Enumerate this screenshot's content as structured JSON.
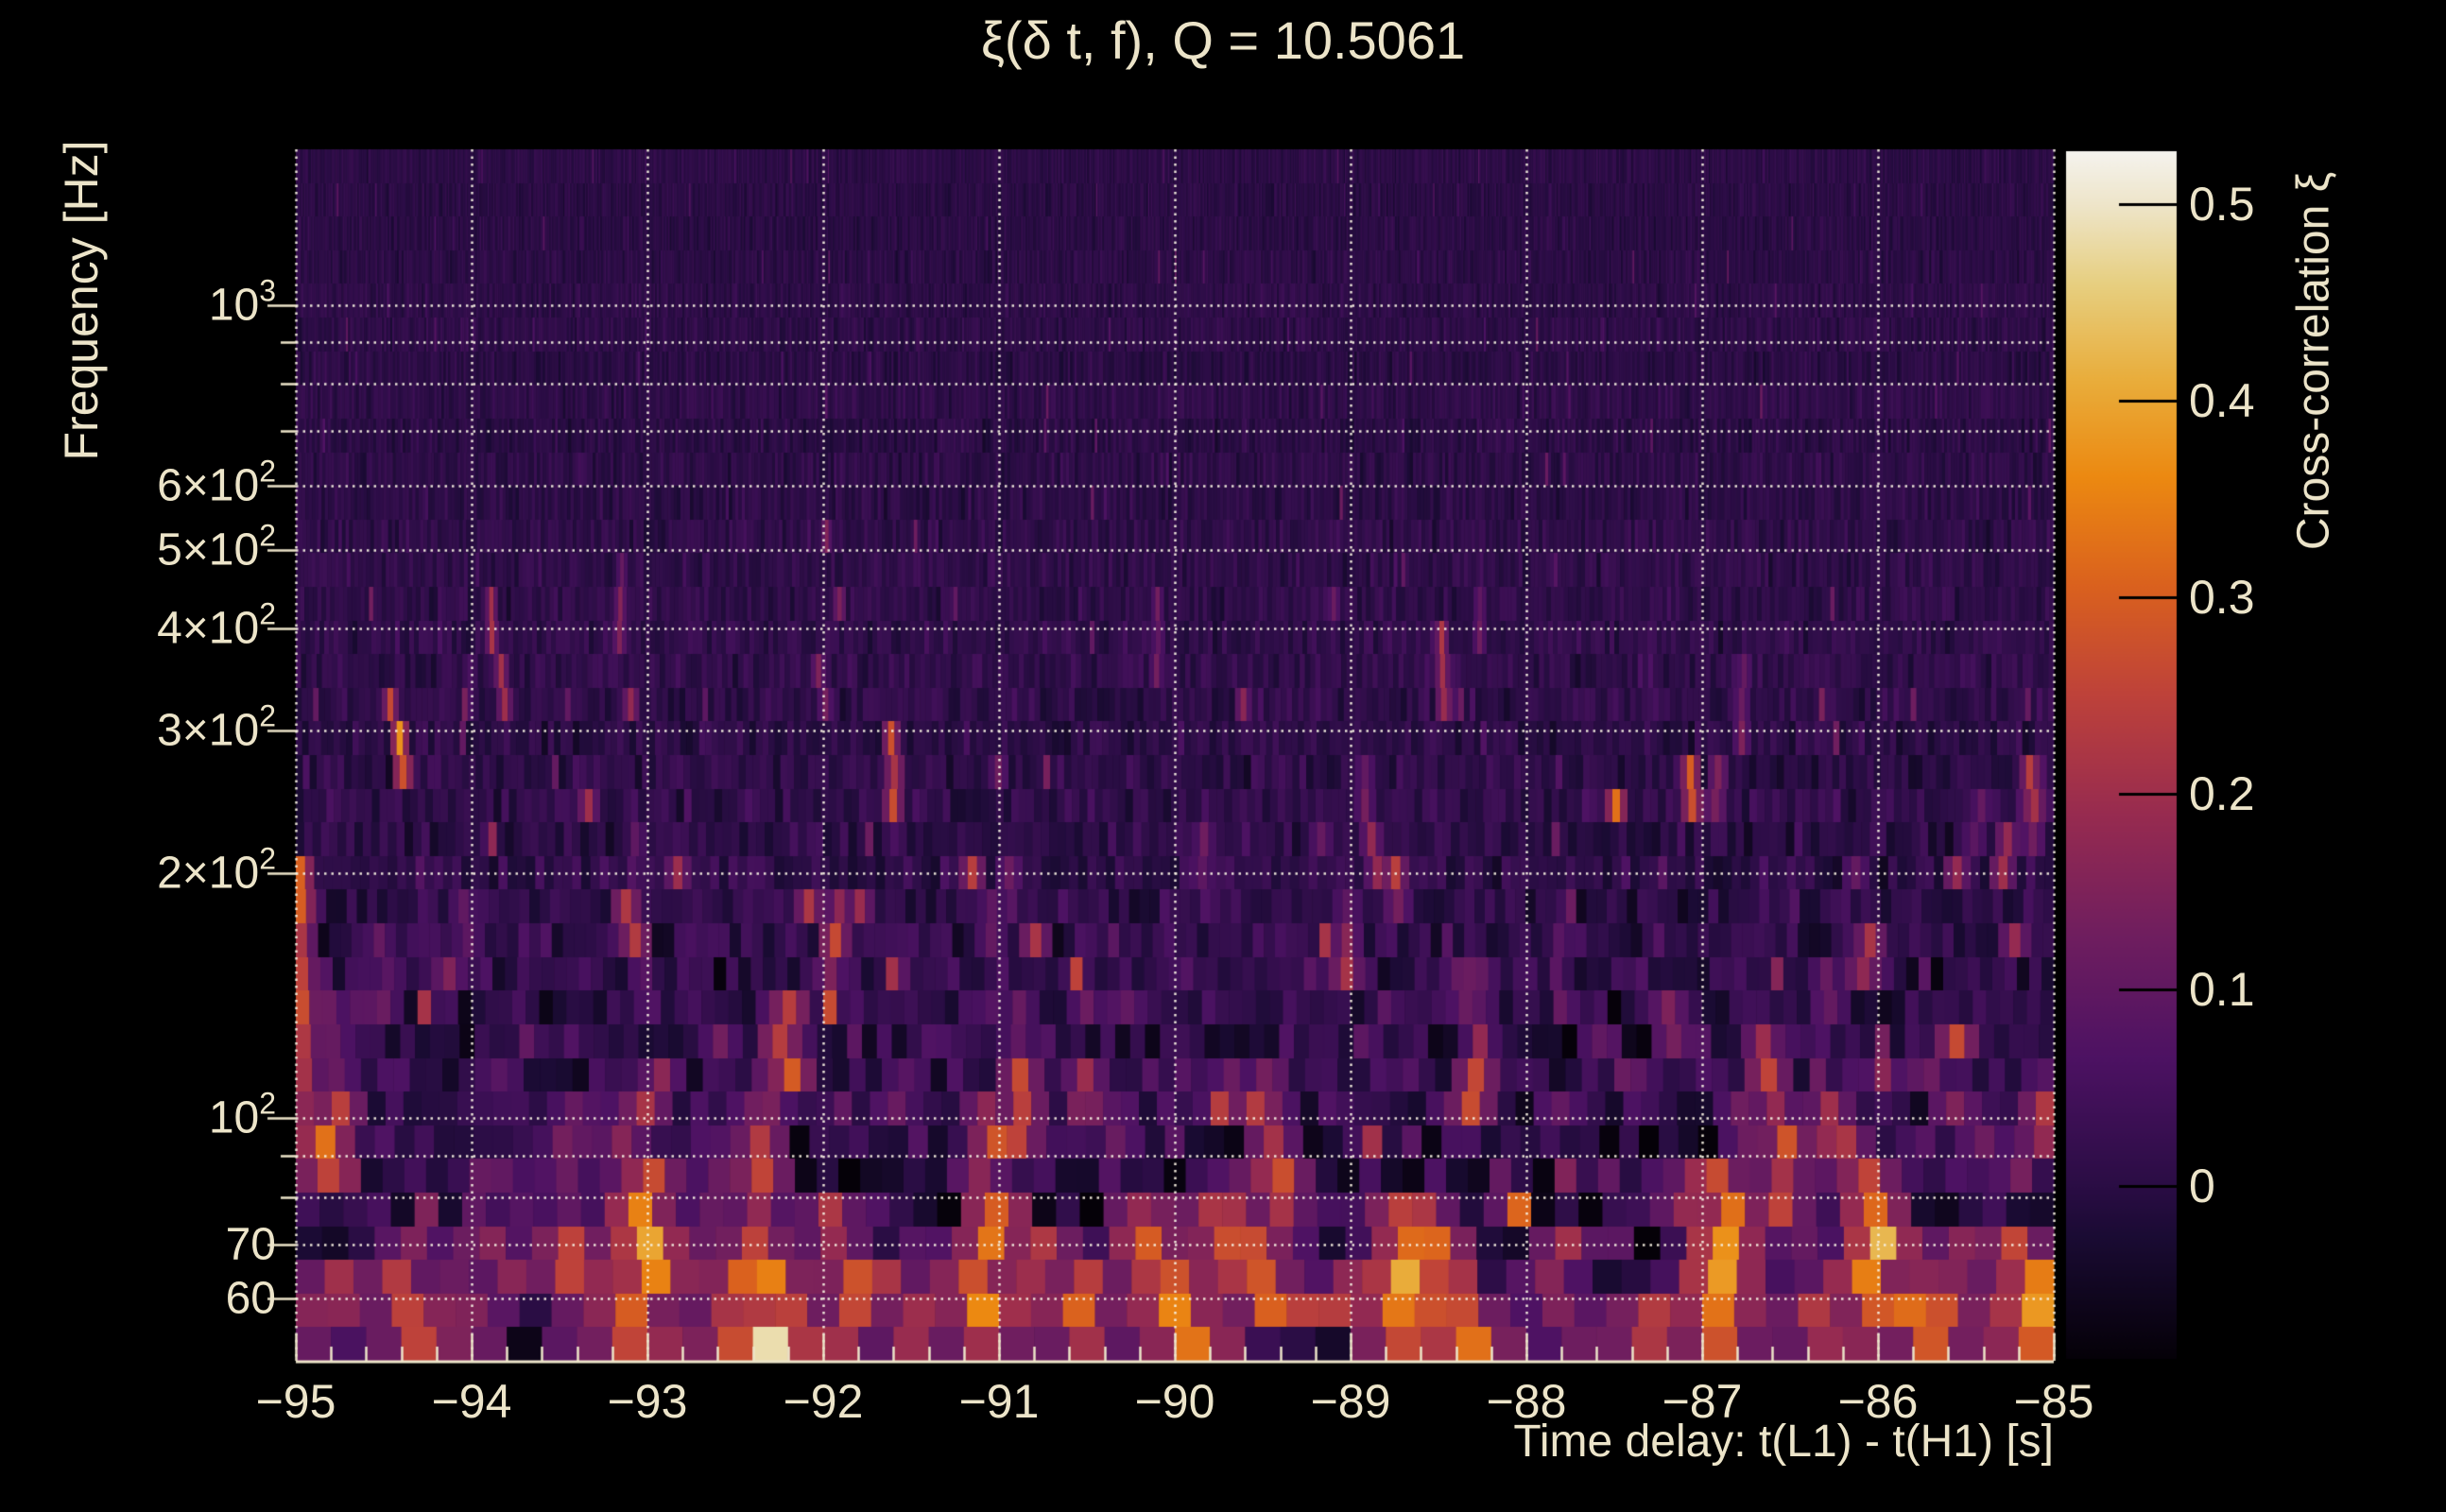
{
  "title": "ξ(δ t, f), Q = 10.5061",
  "chart_data": {
    "type": "heatmap",
    "title": "ξ(δ t, f), Q = 10.5061",
    "q_value": 10.5061,
    "xlabel": "Time delay: t(L1) - t(H1) [s]",
    "ylabel": "Frequency [Hz]",
    "colorbar_label": "Cross-correlation ξ",
    "x_range": [
      -95,
      -85
    ],
    "x_major_ticks": [
      -95,
      -94,
      -93,
      -92,
      -91,
      -90,
      -89,
      -88,
      -87,
      -86,
      -85
    ],
    "x_minor_step": 0.2,
    "y_scale": "log",
    "y_range_hz": [
      50.3,
      1555
    ],
    "y_gridlines_hz": [
      60,
      70,
      80,
      90,
      100,
      200,
      300,
      400,
      500,
      600,
      700,
      800,
      900,
      1000
    ],
    "y_major_tick_hz": [
      60,
      70,
      100,
      200,
      300,
      400,
      500,
      600,
      1000
    ],
    "y_minor_tick_hz": [
      80,
      90,
      700,
      800,
      900
    ],
    "y_tick_labels": [
      {
        "hz": 1000,
        "base": "10",
        "exp": "3"
      },
      {
        "hz": 600,
        "base": "6×10",
        "exp": "2"
      },
      {
        "hz": 500,
        "base": "5×10",
        "exp": "2"
      },
      {
        "hz": 400,
        "base": "4×10",
        "exp": "2"
      },
      {
        "hz": 300,
        "base": "3×10",
        "exp": "2"
      },
      {
        "hz": 200,
        "base": "2×10",
        "exp": "2"
      },
      {
        "hz": 100,
        "base": "10",
        "exp": "2"
      },
      {
        "hz": 70,
        "base": "70",
        "exp": ""
      },
      {
        "hz": 60,
        "base": "60",
        "exp": ""
      }
    ],
    "grid": true,
    "color_range": [
      -0.088,
      0.527
    ],
    "colorbar_ticks": [
      {
        "v": 0,
        "label": "0"
      },
      {
        "v": 0.1,
        "label": "0.1"
      },
      {
        "v": 0.2,
        "label": "0.2"
      },
      {
        "v": 0.3,
        "label": "0.3"
      },
      {
        "v": 0.4,
        "label": "0.4"
      },
      {
        "v": 0.5,
        "label": "0.5"
      }
    ],
    "colormap_stops": [
      [
        0.0,
        "#050108"
      ],
      [
        0.1,
        "#1a0b33"
      ],
      [
        0.145,
        "#2b0d45"
      ],
      [
        0.25,
        "#4d1263"
      ],
      [
        0.35,
        "#6f1e5f"
      ],
      [
        0.45,
        "#972b50"
      ],
      [
        0.55,
        "#be423a"
      ],
      [
        0.64,
        "#da611e"
      ],
      [
        0.73,
        "#ec8911"
      ],
      [
        0.81,
        "#e9ad3b"
      ],
      [
        0.89,
        "#e7cf80"
      ],
      [
        0.955,
        "#eee5c9"
      ],
      [
        1.0,
        "#f5f3ee"
      ]
    ],
    "background": "#000000",
    "text_color": "#ece4c9",
    "grid_color": "rgba(246,240,224,0.95)",
    "axis_color": "#ece4c9",
    "noise": {
      "seed": 814231,
      "rows": 36,
      "sigma_base": 0.018,
      "sigma_low": 0.09,
      "sigma_ref_hz": 70,
      "sigma_exp": 1.1,
      "spike_prob": 0.01,
      "ambient_streaks": 150
    },
    "hotspots": [
      {
        "dt": -94.97,
        "f_lo": 95,
        "f_hi": 200,
        "xi": 0.27
      },
      {
        "dt": -94.78,
        "f_lo": 78,
        "f_hi": 112,
        "xi": 0.34
      },
      {
        "dt": -94.81,
        "f_lo": 55,
        "f_hi": 70,
        "xi": 0.22
      },
      {
        "dt": -94.35,
        "f_lo": 58,
        "f_hi": 72,
        "xi": 0.24
      },
      {
        "dt": -94.1,
        "f_lo": 145,
        "f_hi": 165,
        "xi": 0.2
      },
      {
        "dt": -93.82,
        "f_lo": 60,
        "f_hi": 75,
        "xi": 0.21
      },
      {
        "dt": -93.35,
        "f_lo": 230,
        "f_hi": 260,
        "xi": 0.2
      },
      {
        "dt": -93.01,
        "f_lo": 52,
        "f_hi": 90,
        "xi": 0.42
      },
      {
        "dt": -92.96,
        "f_lo": 95,
        "f_hi": 115,
        "xi": 0.25
      },
      {
        "dt": -92.43,
        "f_lo": 55,
        "f_hi": 72,
        "xi": 0.3
      },
      {
        "dt": -92.4,
        "f_lo": 75,
        "f_hi": 100,
        "xi": 0.28
      },
      {
        "dt": -92.27,
        "f_lo": 50,
        "f_hi": 57,
        "xi": 0.53
      },
      {
        "dt": -92.27,
        "f_lo": 57,
        "f_hi": 68,
        "xi": 0.38
      },
      {
        "dt": -91.97,
        "f_lo": 480,
        "f_hi": 560,
        "xi": 0.17
      },
      {
        "dt": -91.93,
        "f_lo": 150,
        "f_hi": 185,
        "xi": 0.26
      },
      {
        "dt": -91.76,
        "f_lo": 55,
        "f_hi": 70,
        "xi": 0.3
      },
      {
        "dt": -91.64,
        "f_lo": 58,
        "f_hi": 68,
        "xi": 0.25
      },
      {
        "dt": -91.05,
        "f_lo": 85,
        "f_hi": 105,
        "xi": 0.28
      },
      {
        "dt": -90.82,
        "f_lo": 155,
        "f_hi": 175,
        "xi": 0.22
      },
      {
        "dt": -90.57,
        "f_lo": 50,
        "f_hi": 68,
        "xi": 0.3
      },
      {
        "dt": -90.16,
        "f_lo": 62,
        "f_hi": 78,
        "xi": 0.33
      },
      {
        "dt": -90.02,
        "f_lo": 55,
        "f_hi": 70,
        "xi": 0.28
      },
      {
        "dt": -89.66,
        "f_lo": 62,
        "f_hi": 82,
        "xi": 0.3
      },
      {
        "dt": -89.62,
        "f_lo": 300,
        "f_hi": 340,
        "xi": 0.18
      },
      {
        "dt": -89.43,
        "f_lo": 70,
        "f_hi": 100,
        "xi": 0.27
      },
      {
        "dt": -89.0,
        "f_lo": 140,
        "f_hi": 170,
        "xi": 0.24
      },
      {
        "dt": -88.72,
        "f_lo": 180,
        "f_hi": 220,
        "xi": 0.24
      },
      {
        "dt": -88.69,
        "f_lo": 50,
        "f_hi": 82,
        "xi": 0.4
      },
      {
        "dt": -88.52,
        "f_lo": 60,
        "f_hi": 80,
        "xi": 0.33
      },
      {
        "dt": -88.31,
        "f_lo": 50,
        "f_hi": 60,
        "xi": 0.38
      },
      {
        "dt": -87.82,
        "f_lo": 62,
        "f_hi": 76,
        "xi": 0.22
      },
      {
        "dt": -87.35,
        "f_lo": 50,
        "f_hi": 62,
        "xi": 0.3
      },
      {
        "dt": -86.89,
        "f_lo": 50,
        "f_hi": 90,
        "xi": 0.42
      },
      {
        "dt": -86.63,
        "f_lo": 100,
        "f_hi": 122,
        "xi": 0.28
      },
      {
        "dt": -86.0,
        "f_lo": 53,
        "f_hi": 92,
        "xi": 0.4
      },
      {
        "dt": -85.54,
        "f_lo": 185,
        "f_hi": 210,
        "xi": 0.22
      },
      {
        "dt": -85.28,
        "f_lo": 190,
        "f_hi": 230,
        "xi": 0.25
      },
      {
        "dt": -85.16,
        "f_lo": 50,
        "f_hi": 72,
        "xi": 0.42
      },
      {
        "dt": -85.07,
        "f_lo": 90,
        "f_hi": 110,
        "xi": 0.26
      }
    ]
  }
}
